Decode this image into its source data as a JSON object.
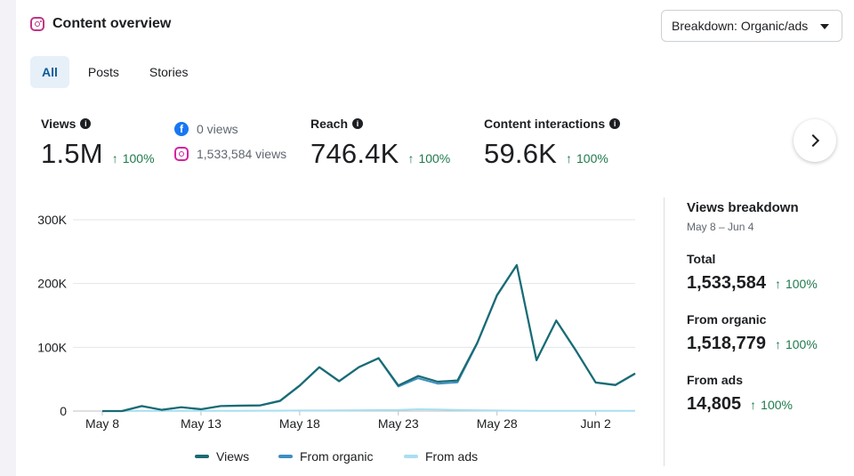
{
  "header": {
    "title": "Content overview",
    "breakdown_label": "Breakdown: Organic/ads"
  },
  "tabs": [
    {
      "label": "All",
      "active": true
    },
    {
      "label": "Posts",
      "active": false
    },
    {
      "label": "Stories",
      "active": false
    }
  ],
  "metrics": {
    "views": {
      "label": "Views",
      "value": "1.5M",
      "change": "100%"
    },
    "platforms": {
      "facebook": "0 views",
      "instagram": "1,533,584 views"
    },
    "reach": {
      "label": "Reach",
      "value": "746.4K",
      "change": "100%"
    },
    "interactions": {
      "label": "Content interactions",
      "value": "59.6K",
      "change": "100%"
    }
  },
  "breakdown": {
    "title": "Views breakdown",
    "date_range": "May 8 – Jun 4",
    "total": {
      "label": "Total",
      "value": "1,533,584",
      "change": "100%"
    },
    "organic": {
      "label": "From organic",
      "value": "1,518,779",
      "change": "100%"
    },
    "ads": {
      "label": "From ads",
      "value": "14,805",
      "change": "100%"
    }
  },
  "chart_data": {
    "type": "line",
    "x": [
      "May 8",
      "May 9",
      "May 10",
      "May 11",
      "May 12",
      "May 13",
      "May 14",
      "May 15",
      "May 16",
      "May 17",
      "May 18",
      "May 19",
      "May 20",
      "May 21",
      "May 22",
      "May 23",
      "May 24",
      "May 25",
      "May 26",
      "May 27",
      "May 28",
      "May 29",
      "May 30",
      "May 31",
      "Jun 1",
      "Jun 2",
      "Jun 3",
      "Jun 4"
    ],
    "x_tick_labels": [
      "May 8",
      "May 13",
      "May 18",
      "May 23",
      "May 28",
      "Jun 2"
    ],
    "x_tick_indices": [
      0,
      5,
      10,
      15,
      20,
      25
    ],
    "y_ticks": [
      0,
      100000,
      200000,
      300000
    ],
    "y_tick_labels": [
      "0",
      "100K",
      "200K",
      "300K"
    ],
    "ylim": [
      0,
      300000
    ],
    "grid": true,
    "legend_position": "bottom",
    "series": [
      {
        "name": "Views",
        "color": "#1a6b73",
        "values": [
          0,
          0,
          8000,
          2000,
          6000,
          3000,
          8000,
          8500,
          9000,
          16000,
          40000,
          69000,
          47000,
          69000,
          83000,
          40000,
          55000,
          46000,
          48000,
          107000,
          182000,
          229000,
          80000,
          142000,
          95000,
          45000,
          41000,
          59000
        ]
      },
      {
        "name": "From organic",
        "color": "#3d8fc2",
        "values": [
          0,
          0,
          7500,
          1800,
          5800,
          2700,
          7700,
          8200,
          8600,
          15500,
          39500,
          68500,
          46500,
          68500,
          82500,
          38500,
          51500,
          43000,
          45000,
          106000,
          181000,
          228500,
          79500,
          141500,
          94500,
          44500,
          40500,
          58500
        ]
      },
      {
        "name": "From ads",
        "color": "#a8dff0",
        "values": [
          0,
          0,
          300,
          200,
          300,
          300,
          300,
          400,
          500,
          600,
          800,
          900,
          1100,
          1300,
          1500,
          1700,
          2800,
          2400,
          1800,
          1200,
          900,
          600,
          400,
          300,
          300,
          300,
          300,
          300
        ]
      }
    ]
  }
}
